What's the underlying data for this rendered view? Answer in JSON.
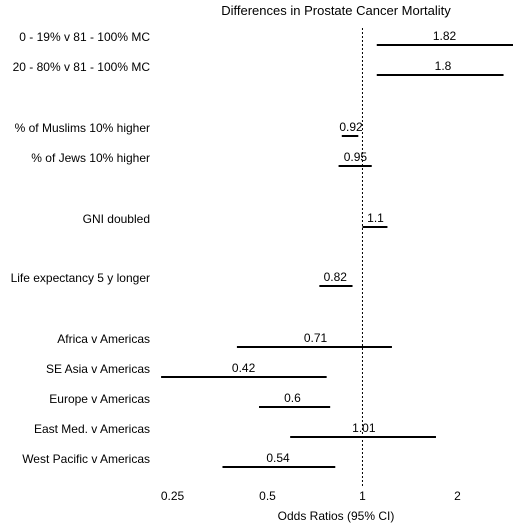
{
  "chart_data": {
    "type": "forest",
    "title": "Differences in Prostate Cancer Mortality",
    "xlabel": "Odds Ratios (95% CI)",
    "x_scale": "log2",
    "xlim": [
      0.22,
      3.0
    ],
    "reference_line": 1,
    "x_ticks": [
      0.25,
      0.5,
      1,
      2
    ],
    "x_tick_labels": [
      "0.25",
      "0.5",
      "1",
      "2"
    ],
    "rows": [
      {
        "label": "0 - 19% v 81 - 100% MC",
        "or": 1.82,
        "or_label": "1.82",
        "ci": [
          1.11,
          3.0
        ]
      },
      {
        "label": "20 - 80% v 81 - 100% MC",
        "or": 1.8,
        "or_label": "1.8",
        "ci": [
          1.11,
          2.8
        ]
      },
      {
        "label": "% of Muslims 10% higher",
        "or": 0.92,
        "or_label": "0.92",
        "ci": [
          0.86,
          0.97
        ]
      },
      {
        "label": "% of Jews 10% higher",
        "or": 0.95,
        "or_label": "0.95",
        "ci": [
          0.84,
          1.07
        ]
      },
      {
        "label": "GNI doubled",
        "or": 1.1,
        "or_label": "1.1",
        "ci": [
          1.0,
          1.2
        ]
      },
      {
        "label": "Life expectancy 5 y longer",
        "or": 0.82,
        "or_label": "0.82",
        "ci": [
          0.73,
          0.93
        ]
      },
      {
        "label": "Africa v Americas",
        "or": 0.71,
        "or_label": "0.71",
        "ci": [
          0.4,
          1.24
        ]
      },
      {
        "label": "SE Asia v Americas",
        "or": 0.42,
        "or_label": "0.42",
        "ci": [
          0.23,
          0.77
        ]
      },
      {
        "label": "Europe v Americas",
        "or": 0.6,
        "or_label": "0.6",
        "ci": [
          0.47,
          0.79
        ]
      },
      {
        "label": "East Med. v Americas",
        "or": 1.01,
        "or_label": "1.01",
        "ci": [
          0.59,
          1.71
        ]
      },
      {
        "label": "West Pacific v Americas",
        "or": 0.54,
        "or_label": "0.54",
        "ci": [
          0.36,
          0.82
        ]
      }
    ]
  }
}
